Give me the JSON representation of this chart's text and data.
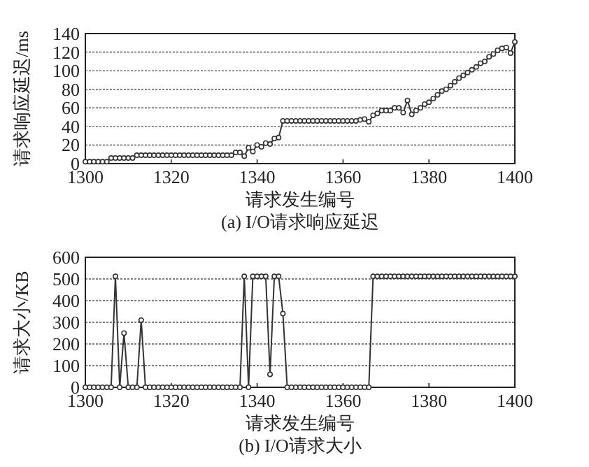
{
  "chart_data": [
    {
      "type": "line",
      "title": "(a) I/O请求响应延迟",
      "xlabel": "请求发生编号",
      "ylabel": "请求响应延迟/ms",
      "xlim": [
        1300,
        1400
      ],
      "xticks": [
        1300,
        1320,
        1340,
        1360,
        1380,
        1400
      ],
      "ylim": [
        0,
        140
      ],
      "yticks": [
        0,
        20,
        40,
        60,
        80,
        100,
        120,
        140
      ],
      "grid": "y",
      "marker": "circle",
      "line_style": "solid",
      "x": [
        1300,
        1301,
        1302,
        1303,
        1304,
        1305,
        1306,
        1307,
        1308,
        1309,
        1310,
        1311,
        1312,
        1313,
        1314,
        1315,
        1316,
        1317,
        1318,
        1319,
        1320,
        1321,
        1322,
        1323,
        1324,
        1325,
        1326,
        1327,
        1328,
        1329,
        1330,
        1331,
        1332,
        1333,
        1334,
        1335,
        1336,
        1337,
        1338,
        1339,
        1340,
        1341,
        1342,
        1343,
        1344,
        1345,
        1346,
        1347,
        1348,
        1349,
        1350,
        1351,
        1352,
        1353,
        1354,
        1355,
        1356,
        1357,
        1358,
        1359,
        1360,
        1361,
        1362,
        1363,
        1364,
        1365,
        1366,
        1367,
        1368,
        1369,
        1370,
        1371,
        1372,
        1373,
        1374,
        1375,
        1376,
        1377,
        1378,
        1379,
        1380,
        1381,
        1382,
        1383,
        1384,
        1385,
        1386,
        1387,
        1388,
        1389,
        1390,
        1391,
        1392,
        1393,
        1394,
        1395,
        1396,
        1397,
        1398,
        1399,
        1400
      ],
      "series": [
        {
          "color": "#333333",
          "values": [
            2,
            2,
            2,
            2,
            2,
            2,
            6,
            6,
            6,
            6,
            6,
            6,
            9,
            9,
            9,
            9,
            9,
            9,
            9,
            9,
            9,
            9,
            9,
            9,
            9,
            9,
            9,
            9,
            9,
            9,
            9,
            9,
            9,
            9,
            9,
            12,
            12,
            8,
            17,
            13,
            20,
            18,
            22,
            21,
            27,
            28,
            46,
            46,
            46,
            46,
            46,
            46,
            46,
            46,
            46,
            46,
            46,
            46,
            46,
            46,
            46,
            46,
            46,
            46,
            47,
            48,
            45,
            52,
            54,
            57,
            57,
            57,
            60,
            60,
            55,
            68,
            53,
            57,
            60,
            64,
            66,
            70,
            74,
            78,
            80,
            84,
            88,
            92,
            95,
            98,
            101,
            104,
            108,
            110,
            115,
            118,
            122,
            124,
            125,
            119,
            131
          ]
        }
      ]
    },
    {
      "type": "line",
      "title": "(b) I/O请求大小",
      "xlabel": "请求发生编号",
      "ylabel": "请求大小/KB",
      "xlim": [
        1300,
        1400
      ],
      "xticks": [
        1300,
        1320,
        1340,
        1360,
        1380,
        1400
      ],
      "ylim": [
        0,
        600
      ],
      "yticks": [
        0,
        100,
        200,
        300,
        400,
        500,
        600
      ],
      "grid": "y",
      "marker": "circle",
      "line_style": "solid",
      "x": [
        1300,
        1301,
        1302,
        1303,
        1304,
        1305,
        1306,
        1307,
        1308,
        1309,
        1310,
        1311,
        1312,
        1313,
        1314,
        1315,
        1316,
        1317,
        1318,
        1319,
        1320,
        1321,
        1322,
        1323,
        1324,
        1325,
        1326,
        1327,
        1328,
        1329,
        1330,
        1331,
        1332,
        1333,
        1334,
        1335,
        1336,
        1337,
        1338,
        1339,
        1340,
        1341,
        1342,
        1343,
        1344,
        1345,
        1346,
        1347,
        1348,
        1349,
        1350,
        1351,
        1352,
        1353,
        1354,
        1355,
        1356,
        1357,
        1358,
        1359,
        1360,
        1361,
        1362,
        1363,
        1364,
        1365,
        1366,
        1367,
        1368,
        1369,
        1370,
        1371,
        1372,
        1373,
        1374,
        1375,
        1376,
        1377,
        1378,
        1379,
        1380,
        1381,
        1382,
        1383,
        1384,
        1385,
        1386,
        1387,
        1388,
        1389,
        1390,
        1391,
        1392,
        1393,
        1394,
        1395,
        1396,
        1397,
        1398,
        1399,
        1400
      ],
      "series": [
        {
          "color": "#333333",
          "values": [
            0,
            0,
            0,
            0,
            0,
            0,
            0,
            512,
            0,
            250,
            0,
            0,
            0,
            310,
            0,
            0,
            0,
            0,
            0,
            0,
            0,
            0,
            0,
            0,
            0,
            0,
            0,
            0,
            0,
            0,
            0,
            0,
            0,
            0,
            0,
            0,
            0,
            512,
            0,
            512,
            512,
            512,
            512,
            60,
            512,
            512,
            340,
            0,
            0,
            0,
            0,
            0,
            0,
            0,
            0,
            0,
            0,
            0,
            0,
            0,
            0,
            0,
            0,
            0,
            0,
            0,
            0,
            512,
            512,
            512,
            512,
            512,
            512,
            512,
            512,
            512,
            512,
            512,
            512,
            512,
            512,
            512,
            512,
            512,
            512,
            512,
            512,
            512,
            512,
            512,
            512,
            512,
            512,
            512,
            512,
            512,
            512,
            512,
            512,
            512,
            512
          ]
        }
      ]
    }
  ]
}
